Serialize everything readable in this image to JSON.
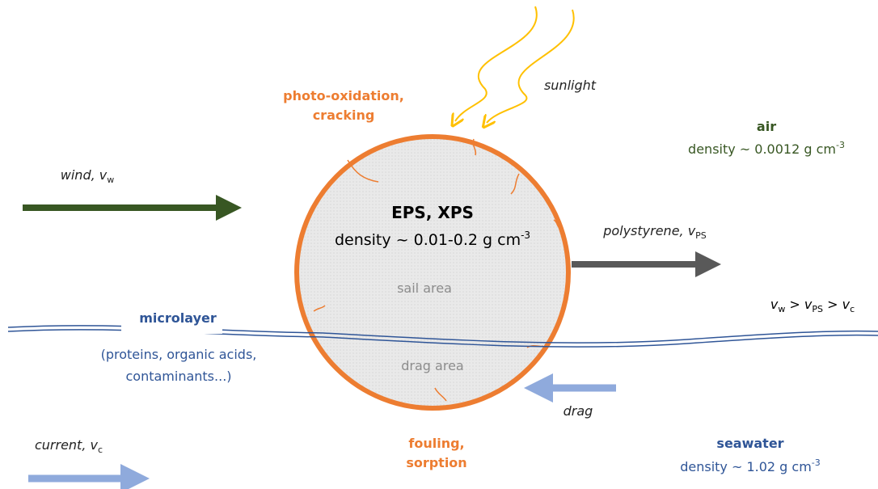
{
  "photo_oxidation": [
    "photo-oxidation,",
    "cracking"
  ],
  "sunlight": "sunlight",
  "air": {
    "title": "air",
    "density": "density ~ 0.0012 g cm",
    "exponent": "-3"
  },
  "wind": {
    "label": "wind, ",
    "symbol": "v",
    "subscript": "w"
  },
  "particle": {
    "title": "EPS, XPS",
    "density": "density ~ 0.01-0.2 g cm",
    "exponent": "-3"
  },
  "polystyrene": {
    "label": "polystyrene, ",
    "symbol": "v",
    "subscript": "PS"
  },
  "sail_area": "sail area",
  "drag_area": "drag area",
  "relation": [
    "v",
    "w",
    " > ",
    "v",
    "PS",
    " > ",
    "v",
    "c"
  ],
  "microlayer": {
    "title": "microlayer",
    "lines": [
      "(proteins, organic acids,",
      "contaminants...)"
    ]
  },
  "drag": "drag",
  "current": {
    "label": "current, ",
    "symbol": "v",
    "subscript": "c"
  },
  "fouling": [
    "fouling,",
    "sorption"
  ],
  "seawater": {
    "title": "seawater",
    "density": "density ~ 1.02 g cm",
    "exponent": "-3"
  }
}
